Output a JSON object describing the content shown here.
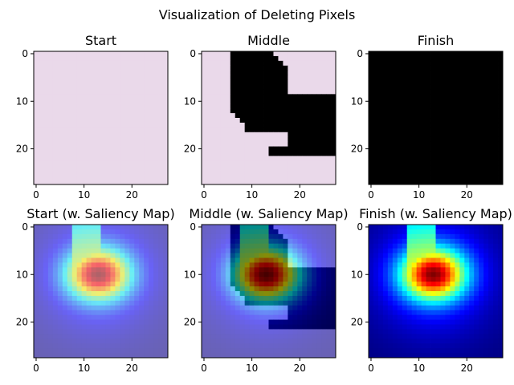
{
  "figure": {
    "title": "Visualization of Deleting Pixels"
  },
  "chart_data": [
    {
      "type": "heatmap",
      "title": "Start",
      "variant": "image",
      "image_size": [
        28,
        28
      ],
      "x_ticks": [
        "0",
        "10",
        "20"
      ],
      "y_ticks": [
        "0",
        "10",
        "20"
      ],
      "background_color": "#ead9ea",
      "deleted_color": "#000000",
      "deleted_fraction": 0.0
    },
    {
      "type": "heatmap",
      "title": "Middle",
      "variant": "image",
      "image_size": [
        28,
        28
      ],
      "x_ticks": [
        "0",
        "10",
        "20"
      ],
      "y_ticks": [
        "0",
        "10",
        "20"
      ],
      "background_color": "#ead9ea",
      "deleted_color": "#000000",
      "deleted_fraction": 0.5
    },
    {
      "type": "heatmap",
      "title": "Finish",
      "variant": "image",
      "image_size": [
        28,
        28
      ],
      "x_ticks": [
        "0",
        "10",
        "20"
      ],
      "y_ticks": [
        "0",
        "10",
        "20"
      ],
      "background_color": "#ead9ea",
      "deleted_color": "#000000",
      "deleted_fraction": 1.0
    },
    {
      "type": "heatmap",
      "title": "Start (w. Saliency Map)",
      "variant": "saliency",
      "image_size": [
        28,
        28
      ],
      "x_ticks": [
        "0",
        "10",
        "20"
      ],
      "y_ticks": [
        "0",
        "10",
        "20"
      ],
      "colormap": "jet",
      "saliency_peak": [
        13,
        10
      ],
      "deleted_fraction": 0.0
    },
    {
      "type": "heatmap",
      "title": "Middle (w. Saliency Map)",
      "variant": "saliency",
      "image_size": [
        28,
        28
      ],
      "x_ticks": [
        "0",
        "10",
        "20"
      ],
      "y_ticks": [
        "0",
        "10",
        "20"
      ],
      "colormap": "jet",
      "saliency_peak": [
        13,
        10
      ],
      "deleted_fraction": 0.5
    },
    {
      "type": "heatmap",
      "title": "Finish (w. Saliency Map)",
      "variant": "saliency",
      "image_size": [
        28,
        28
      ],
      "x_ticks": [
        "0",
        "10",
        "20"
      ],
      "y_ticks": [
        "0",
        "10",
        "20"
      ],
      "colormap": "jet",
      "saliency_peak": [
        13,
        10
      ],
      "deleted_fraction": 1.0
    }
  ]
}
